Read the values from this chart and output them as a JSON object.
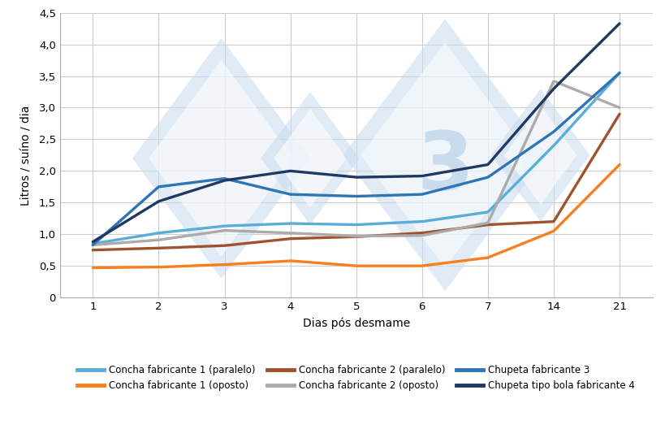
{
  "x_ticks_pos": [
    0,
    1,
    2,
    3,
    4,
    5,
    6,
    7,
    8
  ],
  "x_tick_labels": [
    "1",
    "2",
    "3",
    "4",
    "5",
    "6",
    "7",
    "14",
    "21"
  ],
  "x_real": [
    1,
    2,
    3,
    4,
    5,
    6,
    7,
    14,
    21
  ],
  "xlabel": "Dias pós desmame",
  "ylabel": "Litros / suíno / dia",
  "ylim": [
    0,
    4.5
  ],
  "yticks": [
    0,
    0.5,
    1.0,
    1.5,
    2.0,
    2.5,
    3.0,
    3.5,
    4.0,
    4.5
  ],
  "ytick_labels": [
    "0",
    "0,5",
    "1,0",
    "1,5",
    "2,0",
    "2,5",
    "3,0",
    "3,5",
    "4,0",
    "4,5"
  ],
  "series": [
    {
      "label": "Concha fabricante 1 (paralelo)",
      "color": "#5BADD9",
      "linewidth": 2.4,
      "y": [
        0.85,
        1.02,
        1.13,
        1.17,
        1.15,
        1.2,
        1.35,
        2.4,
        3.55
      ]
    },
    {
      "label": "Concha fabricante 1 (oposto)",
      "color": "#F97F1E",
      "linewidth": 2.4,
      "y": [
        0.47,
        0.48,
        0.52,
        0.58,
        0.5,
        0.5,
        0.63,
        1.05,
        2.1
      ]
    },
    {
      "label": "Concha fabricante 2 (paralelo)",
      "color": "#A0522D",
      "linewidth": 2.4,
      "y": [
        0.75,
        0.78,
        0.82,
        0.93,
        0.96,
        1.02,
        1.15,
        1.2,
        2.9
      ]
    },
    {
      "label": "Concha fabricante 2 (oposto)",
      "color": "#ABABAB",
      "linewidth": 2.4,
      "y": [
        0.83,
        0.91,
        1.06,
        1.02,
        0.97,
        0.98,
        1.18,
        3.42,
        3.0
      ]
    },
    {
      "label": "Chupeta fabricante 3",
      "color": "#2E75B6",
      "linewidth": 2.4,
      "y": [
        0.83,
        1.75,
        1.88,
        1.63,
        1.6,
        1.63,
        1.9,
        2.62,
        3.55
      ]
    },
    {
      "label": "Chupeta tipo bola fabricante 4",
      "color": "#1F3864",
      "linewidth": 2.4,
      "y": [
        0.88,
        1.52,
        1.85,
        2.0,
        1.9,
        1.92,
        2.1,
        3.3,
        4.33
      ]
    }
  ],
  "legend_order": [
    0,
    1,
    2,
    3,
    4,
    5
  ],
  "background_color": "#FFFFFF",
  "grid_color": "#CCCCCC",
  "wm_color": "#C8DCEE",
  "legend_fontsize": 8.5,
  "axis_fontsize": 10,
  "tick_fontsize": 9.5
}
